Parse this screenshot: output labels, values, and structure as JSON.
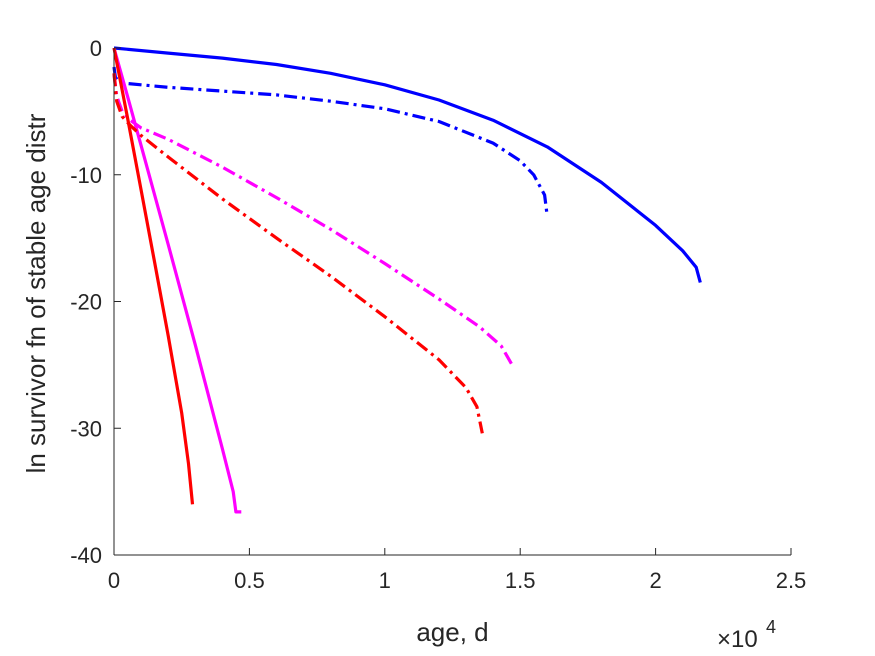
{
  "chart_data": {
    "type": "line",
    "xlabel": "age, d",
    "ylabel": "ln survivor fn of stable age distr",
    "x_exponent": {
      "base": "×10",
      "power": "4"
    },
    "xlim": [
      0,
      25000
    ],
    "ylim": [
      -40,
      0
    ],
    "x_ticks": [
      0,
      5000,
      10000,
      15000,
      20000,
      25000
    ],
    "x_tick_labels": [
      "0",
      "0.5",
      "1",
      "1.5",
      "2",
      "2.5"
    ],
    "y_ticks": [
      0,
      -10,
      -20,
      -30,
      -40
    ],
    "y_tick_labels": [
      "0",
      "-10",
      "-20",
      "-30",
      "-40"
    ],
    "grid": false,
    "legend": "none",
    "series": [
      {
        "color": "#0000ff",
        "style": "solid",
        "x": [
          0,
          2000,
          4000,
          6000,
          8000,
          10000,
          12000,
          14000,
          16000,
          18000,
          20000,
          21000,
          21500,
          21650
        ],
        "y": [
          0,
          -0.4,
          -0.8,
          -1.3,
          -2.0,
          -2.9,
          -4.1,
          -5.7,
          -7.8,
          -10.6,
          -14.0,
          -16.0,
          -17.3,
          -18.5
        ]
      },
      {
        "color": "#0000ff",
        "style": "dashdot",
        "x": [
          0,
          50,
          200,
          500,
          1000,
          2000,
          4000,
          6000,
          8000,
          10000,
          12000,
          14000,
          15000,
          15500,
          15900,
          16000
        ],
        "y": [
          -1.5,
          -2.3,
          -2.7,
          -2.8,
          -2.9,
          -3.1,
          -3.4,
          -3.7,
          -4.2,
          -4.8,
          -5.8,
          -7.5,
          -8.9,
          -10.0,
          -11.6,
          -13.3
        ]
      },
      {
        "color": "#ff00ff",
        "style": "solid",
        "x": [
          0,
          500,
          1000,
          2000,
          3000,
          4000,
          4400,
          4500,
          4700
        ],
        "y": [
          0,
          -3.8,
          -7.7,
          -15.5,
          -23.4,
          -31.6,
          -35.0,
          -36.6,
          -36.6
        ]
      },
      {
        "color": "#ff00ff",
        "style": "dashdot",
        "x": [
          0,
          100,
          300,
          600,
          1000,
          2000,
          4000,
          6000,
          8000,
          10000,
          12000,
          13500,
          14300,
          14700
        ],
        "y": [
          -2.0,
          -3.8,
          -5.0,
          -5.7,
          -6.3,
          -7.2,
          -9.4,
          -11.8,
          -14.3,
          -17.0,
          -19.8,
          -22.0,
          -23.5,
          -25.0
        ]
      },
      {
        "color": "#ff0000",
        "style": "solid",
        "x": [
          0,
          500,
          1000,
          1500,
          2000,
          2500,
          2750,
          2900
        ],
        "y": [
          0,
          -5.5,
          -11.2,
          -16.9,
          -22.7,
          -28.8,
          -32.8,
          -36.0
        ]
      },
      {
        "color": "#ff0000",
        "style": "dashdot",
        "x": [
          0,
          100,
          300,
          600,
          1000,
          2000,
          4000,
          6000,
          8000,
          10000,
          12000,
          13000,
          13400,
          13600
        ],
        "y": [
          -2.0,
          -4.2,
          -5.4,
          -6.1,
          -6.9,
          -8.6,
          -11.9,
          -15.0,
          -18.0,
          -21.2,
          -24.6,
          -26.8,
          -28.3,
          -30.4
        ]
      }
    ]
  }
}
